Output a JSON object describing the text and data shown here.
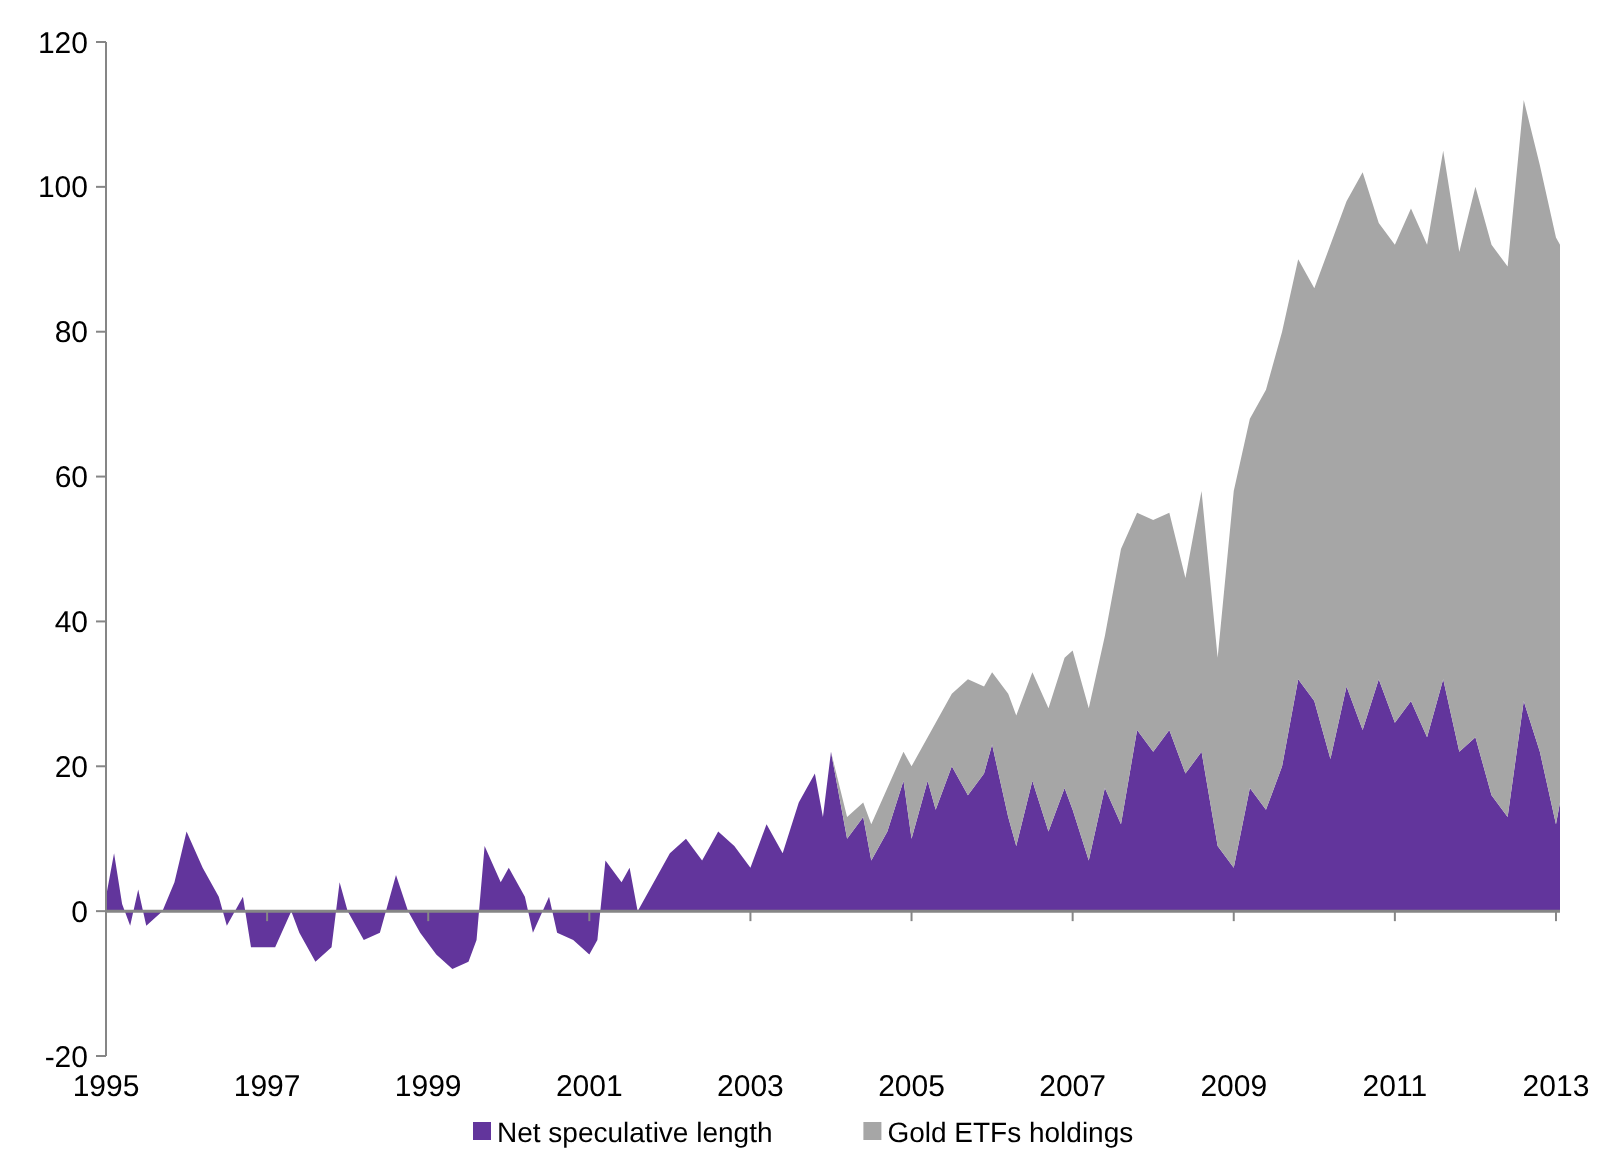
{
  "chart_data": {
    "type": "area",
    "stacked": true,
    "legend": "bottom",
    "x": [
      1995.0,
      1995.1,
      1995.2,
      1995.3,
      1995.4,
      1995.5,
      1995.7,
      1995.85,
      1996.0,
      1996.2,
      1996.4,
      1996.5,
      1996.7,
      1996.8,
      1997.1,
      1997.3,
      1997.4,
      1997.6,
      1997.8,
      1997.9,
      1998.0,
      1998.2,
      1998.4,
      1998.6,
      1998.75,
      1998.9,
      1999.1,
      1999.3,
      1999.5,
      1999.6,
      1999.7,
      1999.9,
      2000.0,
      2000.2,
      2000.3,
      2000.5,
      2000.6,
      2000.8,
      2001.0,
      2001.1,
      2001.2,
      2001.4,
      2001.5,
      2001.6,
      2001.8,
      2002.0,
      2002.2,
      2002.4,
      2002.6,
      2002.8,
      2003.0,
      2003.2,
      2003.4,
      2003.6,
      2003.8,
      2003.9,
      2004.0,
      2004.2,
      2004.4,
      2004.5,
      2004.7,
      2004.9,
      2005.0,
      2005.2,
      2005.3,
      2005.5,
      2005.7,
      2005.9,
      2006.0,
      2006.2,
      2006.3,
      2006.5,
      2006.7,
      2006.9,
      2007.0,
      2007.2,
      2007.4,
      2007.6,
      2007.8,
      2008.0,
      2008.2,
      2008.4,
      2008.6,
      2008.8,
      2009.0,
      2009.2,
      2009.4,
      2009.6,
      2009.8,
      2010.0,
      2010.2,
      2010.4,
      2010.6,
      2010.8,
      2011.0,
      2011.2,
      2011.4,
      2011.6,
      2011.8,
      2012.0,
      2012.2,
      2012.4,
      2012.6,
      2012.8,
      2013.0,
      2013.05
    ],
    "xlim": [
      1995,
      2013.05
    ],
    "xticks": [
      1995,
      1997,
      1999,
      2001,
      2003,
      2005,
      2007,
      2009,
      2011,
      2013
    ],
    "ylim": [
      -20,
      120
    ],
    "yticks": [
      -20,
      0,
      20,
      40,
      60,
      80,
      100,
      120
    ],
    "series": [
      {
        "name": "Net speculative length",
        "color": "#62359c",
        "values": [
          2,
          8,
          1,
          -2,
          3,
          -2,
          0,
          4,
          11,
          6,
          2,
          -2,
          2,
          -5,
          -5,
          0,
          -3,
          -7,
          -5,
          4,
          0,
          -4,
          -3,
          5,
          0,
          -3,
          -6,
          -8,
          -7,
          -4,
          9,
          4,
          6,
          2,
          -3,
          2,
          -3,
          -4,
          -6,
          -4,
          7,
          4,
          6,
          0,
          4,
          8,
          10,
          7,
          11,
          9,
          6,
          12,
          8,
          15,
          19,
          13,
          22,
          10,
          13,
          7,
          11,
          18,
          10,
          18,
          14,
          20,
          16,
          19,
          23,
          13,
          9,
          18,
          11,
          17,
          14,
          7,
          17,
          12,
          25,
          22,
          25,
          19,
          22,
          9,
          6,
          17,
          14,
          20,
          32,
          29,
          21,
          31,
          25,
          32,
          26,
          29,
          24,
          32,
          22,
          24,
          16,
          13,
          29,
          22,
          12,
          15
        ]
      },
      {
        "name": "Gold ETFs holdings",
        "color": "#a6a6a6",
        "values": [
          0,
          0,
          0,
          0,
          0,
          0,
          0,
          0,
          0,
          0,
          0,
          0,
          0,
          0,
          0,
          0,
          0,
          0,
          0,
          0,
          0,
          0,
          0,
          0,
          0,
          0,
          0,
          0,
          0,
          0,
          0,
          0,
          0,
          0,
          0,
          0,
          0,
          0,
          0,
          0,
          0,
          0,
          0,
          0,
          0,
          0,
          0,
          0,
          0,
          0,
          0,
          0,
          0,
          0,
          0,
          0,
          0,
          3,
          2,
          5,
          6,
          4,
          10,
          6,
          12,
          10,
          16,
          12,
          10,
          17,
          18,
          15,
          17,
          18,
          22,
          21,
          21,
          38,
          30,
          32,
          30,
          27,
          36,
          26,
          52,
          51,
          58,
          60,
          58,
          57,
          71,
          67,
          77,
          63,
          66,
          68,
          68,
          73,
          69,
          76,
          76,
          76,
          83,
          81,
          81,
          77
        ]
      }
    ]
  }
}
